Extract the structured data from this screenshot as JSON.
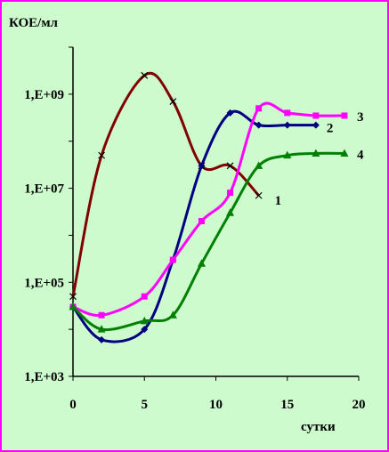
{
  "colors": {
    "background": "#cdfbcd",
    "border": "#ff00ff"
  },
  "chart_data": {
    "type": "line",
    "ylabel": "КОЕ/мл",
    "xlabel": "сутки",
    "x_ticks": [
      "0",
      "5",
      "10",
      "15",
      "20"
    ],
    "y_ticks": [
      "1,E+03",
      "1,E+05",
      "1,E+07",
      "1,E+09"
    ],
    "xlim": [
      0,
      20
    ],
    "ylim": [
      1000,
      10000000000
    ],
    "y_scale": "log",
    "grid": false,
    "legend": "curve-end labels",
    "series": [
      {
        "name": "1",
        "color": "#800000",
        "marker": "cross",
        "x": [
          0,
          2,
          5,
          7,
          9,
          11,
          13
        ],
        "y": [
          50000,
          50000000,
          2500000000,
          700000000,
          30000000,
          30000000,
          7000000
        ]
      },
      {
        "name": "2",
        "color": "#000080",
        "marker": "diamond",
        "x": [
          0,
          2,
          5,
          7,
          9,
          11,
          13,
          15,
          17
        ],
        "y": [
          30000,
          6000,
          10000,
          300000,
          30000000,
          400000000,
          220000000,
          220000000,
          220000000
        ]
      },
      {
        "name": "3",
        "color": "#ff00ff",
        "marker": "square",
        "x": [
          0,
          2,
          5,
          7,
          9,
          11,
          13,
          15,
          17,
          19
        ],
        "y": [
          30000,
          20000,
          50000,
          300000,
          2000000,
          8000000,
          500000000,
          400000000,
          350000000,
          350000000
        ]
      },
      {
        "name": "4",
        "color": "#008000",
        "marker": "triangle",
        "x": [
          0,
          2,
          5,
          7,
          9,
          11,
          13,
          15,
          17,
          19
        ],
        "y": [
          30000,
          10000,
          15000,
          20000,
          250000,
          3000000,
          30000000,
          50000000,
          55000000,
          55000000
        ]
      }
    ]
  }
}
